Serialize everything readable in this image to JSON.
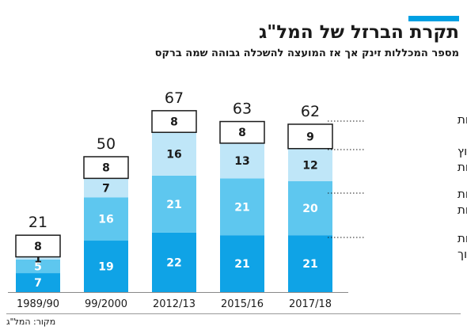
{
  "header": {
    "title": "תקרת הברזל של המל\"ג",
    "subtitle": "מספר המכללות זינק אך אז המועצה להשכלה גבוהה שמה ברקס"
  },
  "source": "מקור: המל\"ג",
  "colors": {
    "accent": "#00a0e3",
    "universities": "#ffffff",
    "non_budgeted_colleges": "#bfe6f8",
    "budgeted_colleges": "#5ec7ef",
    "academic_teaching_colleges": "#0fa3e6",
    "outline": "#1a1a1a"
  },
  "chart_data": {
    "type": "bar",
    "stacked": true,
    "categories": [
      "1989/90",
      "99/2000",
      "2012/13",
      "2015/16",
      "2017/18"
    ],
    "totals": [
      21,
      50,
      67,
      63,
      62
    ],
    "series": [
      {
        "key": "academic_teaching_colleges",
        "name": "מכללות אקדמיות לחינוך",
        "values": [
          7,
          19,
          22,
          21,
          21
        ]
      },
      {
        "key": "budgeted_colleges",
        "name": "מכללות מתוקצבות",
        "values": [
          5,
          16,
          21,
          21,
          20
        ]
      },
      {
        "key": "non_budgeted_colleges",
        "name": "מכללות חוץ תקציביות",
        "values": [
          1,
          7,
          16,
          13,
          12
        ]
      },
      {
        "key": "universities",
        "name": "אוניברסיטאות",
        "values": [
          8,
          8,
          8,
          8,
          9
        ]
      }
    ],
    "legend_placement": "right",
    "grid": false,
    "ylim": [
      0,
      70
    ]
  }
}
